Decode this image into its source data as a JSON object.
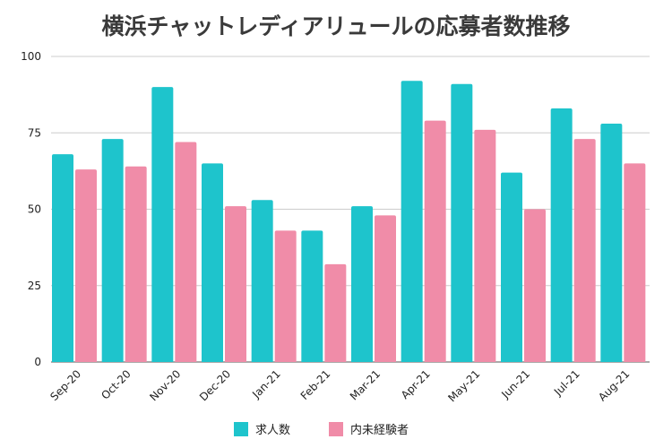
{
  "chart_data": {
    "type": "bar",
    "title": "横浜チャットレディアリュールの応募者数推移",
    "categories": [
      "Sep-20",
      "Oct-20",
      "Nov-20",
      "Dec-20",
      "Jan-21",
      "Feb-21",
      "Mar-21",
      "Apr-21",
      "May-21",
      "Jun-21",
      "Jul-21",
      "Aug-21"
    ],
    "series": [
      {
        "name": "求人数",
        "color": "#1ec4cc",
        "values": [
          68,
          73,
          90,
          65,
          53,
          43,
          51,
          92,
          91,
          62,
          83,
          78
        ]
      },
      {
        "name": "内未経験者",
        "color": "#f08ca8",
        "values": [
          63,
          64,
          72,
          51,
          43,
          32,
          48,
          79,
          76,
          50,
          73,
          65
        ]
      }
    ],
    "ylim": [
      0,
      100
    ],
    "yticks": [
      0,
      25,
      50,
      75,
      100
    ],
    "grid": true,
    "legend": "bottom"
  }
}
